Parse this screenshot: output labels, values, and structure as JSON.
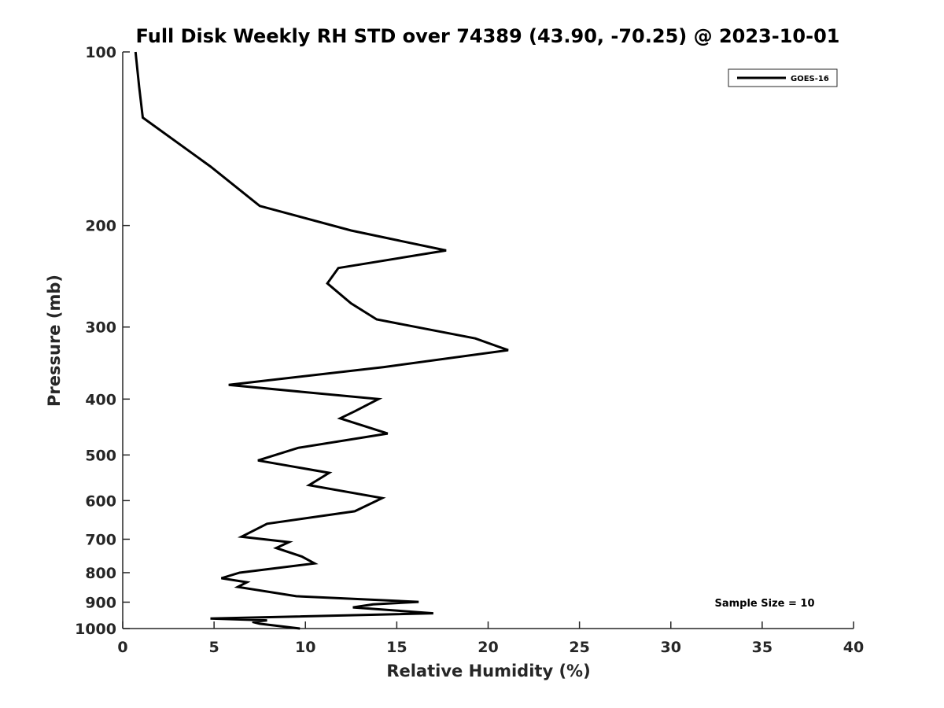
{
  "chart_data": {
    "type": "line",
    "title": "Full Disk Weekly RH STD over 74389 (43.90, -70.25) @ 2023-10-01",
    "xlabel": "Relative Humidity (%)",
    "ylabel": "Pressure (mb)",
    "xlim": [
      0,
      40
    ],
    "ylim": [
      100,
      1000
    ],
    "yscale": "log",
    "yreversed": true,
    "xticks": [
      0,
      5,
      10,
      15,
      20,
      25,
      30,
      35,
      40
    ],
    "yticks": [
      100,
      200,
      300,
      400,
      500,
      600,
      700,
      800,
      900,
      1000
    ],
    "grid": false,
    "legend_position": "top-right",
    "annotation": "Sample Size = 10",
    "colors": {
      "series": "#000000",
      "axes": "#262626"
    },
    "series": [
      {
        "name": "GOES-16",
        "x": [
          0.7,
          0.9,
          1.1,
          4.8,
          7.5,
          12.5,
          17.7,
          11.8,
          11.2,
          12.5,
          13.9,
          19.3,
          21.1,
          14.3,
          5.8,
          14.0,
          12.7,
          11.9,
          14.5,
          9.6,
          7.4,
          11.3,
          10.2,
          14.2,
          12.7,
          7.9,
          6.5,
          9.1,
          8.4,
          9.8,
          10.5,
          6.4,
          5.4,
          6.8,
          6.3,
          9.5,
          16.2,
          13.7,
          12.6,
          17.0,
          4.8,
          7.9,
          7.1,
          7.5,
          9.7
        ],
        "y": [
          100,
          115,
          130,
          158,
          185,
          204,
          221,
          237,
          252,
          273,
          291,
          314,
          329,
          352,
          378,
          400,
          420,
          432,
          459,
          486,
          511,
          537,
          564,
          594,
          626,
          658,
          693,
          708,
          725,
          750,
          771,
          800,
          818,
          831,
          847,
          879,
          899,
          908,
          919,
          941,
          961,
          968,
          974,
          981,
          1000
        ]
      }
    ]
  }
}
